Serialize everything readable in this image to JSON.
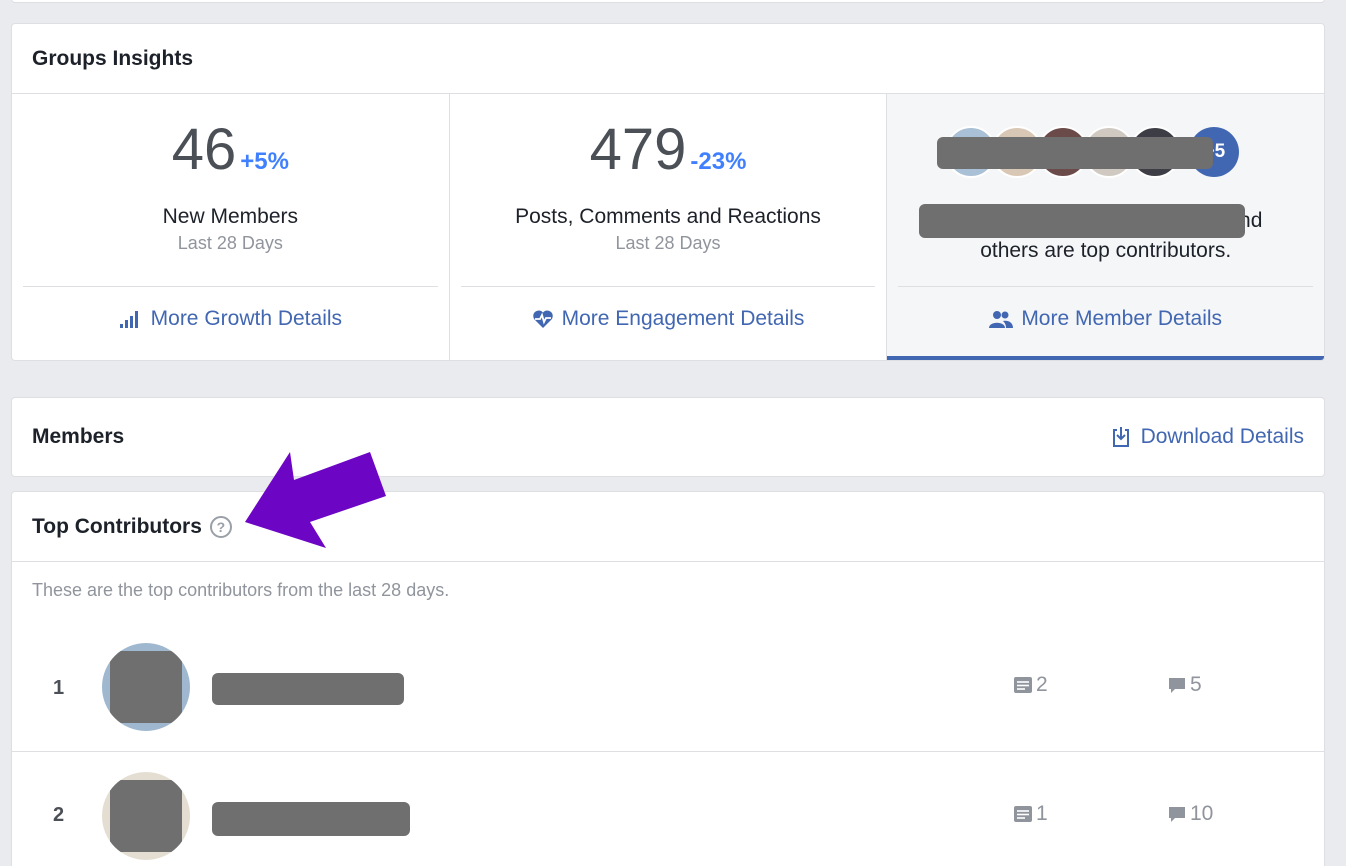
{
  "insights": {
    "title": "Groups Insights",
    "new_members": {
      "value": "46",
      "change": "+5%",
      "label": "New Members",
      "period": "Last 28 Days",
      "link": "More Growth Details"
    },
    "engagement": {
      "value": "479",
      "change": "-23%",
      "label": "Posts, Comments and Reactions",
      "period": "Last 28 Days",
      "link": "More Engagement Details"
    },
    "contributors": {
      "extra_count": "+5",
      "text_suffix": "and",
      "text_line2": "others are top contributors.",
      "link": "More Member Details"
    }
  },
  "members": {
    "title": "Members",
    "download": "Download Details"
  },
  "top_contributors": {
    "title": "Top Contributors",
    "help": "?",
    "description": "These are the top contributors from the last 28 days.",
    "rows": [
      {
        "rank": "1",
        "posts": "2",
        "comments": "5"
      },
      {
        "rank": "2",
        "posts": "1",
        "comments": "10"
      }
    ]
  },
  "colors": {
    "link": "#4267b2",
    "change": "#4080ff",
    "annotation_arrow": "#6c05c4"
  }
}
